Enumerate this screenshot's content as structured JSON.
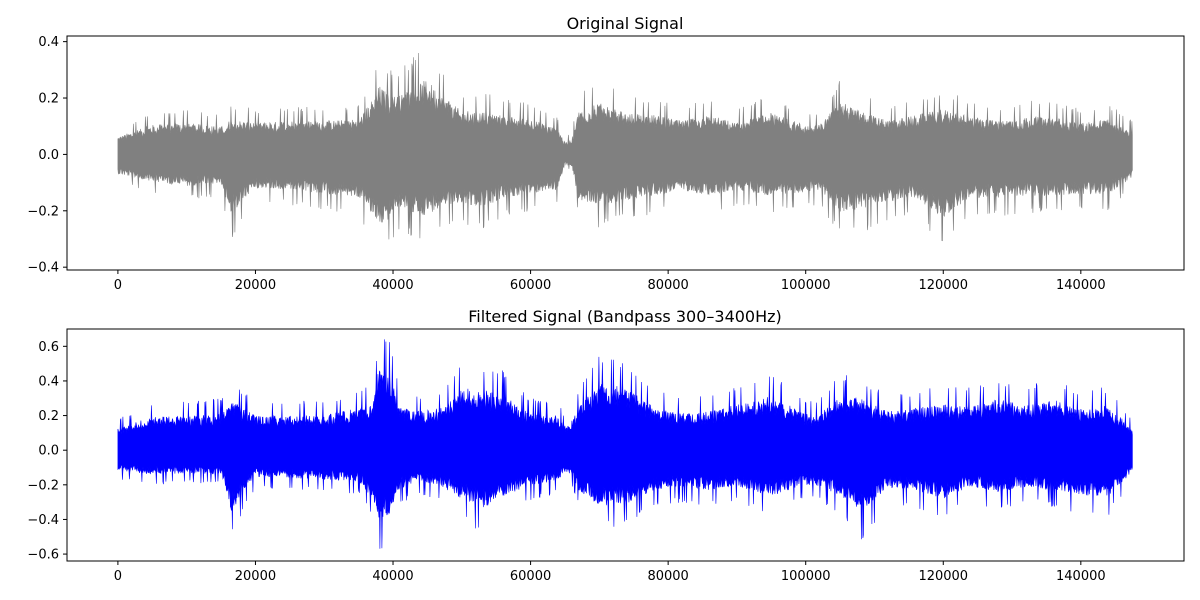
{
  "chart_data": [
    {
      "type": "line",
      "title": "Original Signal",
      "xlabel": "",
      "ylabel": "",
      "xlim": [
        -7400,
        155000
      ],
      "ylim": [
        -0.41,
        0.42
      ],
      "x_ticks": [
        0,
        20000,
        40000,
        60000,
        80000,
        100000,
        120000,
        140000
      ],
      "y_ticks": [
        -0.4,
        -0.2,
        0.0,
        0.2,
        0.4
      ],
      "x_tick_labels": [
        "0",
        "20000",
        "40000",
        "60000",
        "80000",
        "100000",
        "120000",
        "140000"
      ],
      "y_tick_labels": [
        "−0.4",
        "−0.2",
        "0.0",
        "0.2",
        "0.4"
      ],
      "grid": false,
      "legend": false,
      "color": "#808080",
      "n_samples": 147500,
      "envelope": {
        "x": [
          0,
          5000,
          10000,
          15000,
          16500,
          20000,
          25000,
          30000,
          35000,
          37000,
          38000,
          39500,
          41000,
          43000,
          45000,
          47000,
          50000,
          53000,
          56000,
          60000,
          64000,
          65000,
          66000,
          67000,
          70000,
          74000,
          78000,
          82000,
          86000,
          90000,
          95000,
          100000,
          102000,
          105000,
          108000,
          112000,
          116000,
          120000,
          124000,
          128000,
          132000,
          136000,
          140000,
          144000,
          147500
        ],
        "upper": [
          0.09,
          0.15,
          0.16,
          0.14,
          0.18,
          0.16,
          0.17,
          0.17,
          0.18,
          0.28,
          0.35,
          0.3,
          0.3,
          0.35,
          0.38,
          0.3,
          0.22,
          0.22,
          0.2,
          0.18,
          0.13,
          0.06,
          0.08,
          0.22,
          0.26,
          0.21,
          0.2,
          0.17,
          0.2,
          0.16,
          0.21,
          0.15,
          0.15,
          0.27,
          0.22,
          0.17,
          0.2,
          0.23,
          0.19,
          0.17,
          0.19,
          0.19,
          0.16,
          0.18,
          0.12
        ],
        "lower": [
          -0.1,
          -0.14,
          -0.16,
          -0.15,
          -0.3,
          -0.17,
          -0.18,
          -0.2,
          -0.22,
          -0.3,
          -0.37,
          -0.33,
          -0.27,
          -0.3,
          -0.31,
          -0.26,
          -0.25,
          -0.27,
          -0.22,
          -0.2,
          -0.18,
          -0.05,
          -0.06,
          -0.24,
          -0.26,
          -0.23,
          -0.21,
          -0.18,
          -0.21,
          -0.18,
          -0.21,
          -0.19,
          -0.18,
          -0.29,
          -0.28,
          -0.24,
          -0.22,
          -0.32,
          -0.22,
          -0.22,
          -0.21,
          -0.21,
          -0.2,
          -0.2,
          -0.12
        ]
      }
    },
    {
      "type": "line",
      "title": "Filtered Signal (Bandpass 300–3400Hz)",
      "xlabel": "",
      "ylabel": "",
      "xlim": [
        -7400,
        155000
      ],
      "ylim": [
        -0.64,
        0.7
      ],
      "x_ticks": [
        0,
        20000,
        40000,
        60000,
        80000,
        100000,
        120000,
        140000
      ],
      "y_ticks": [
        -0.6,
        -0.4,
        -0.2,
        0.0,
        0.2,
        0.4,
        0.6
      ],
      "x_tick_labels": [
        "0",
        "20000",
        "40000",
        "60000",
        "80000",
        "100000",
        "120000",
        "140000"
      ],
      "y_tick_labels": [
        "−0.6",
        "−0.4",
        "−0.2",
        "0.0",
        "0.2",
        "0.4",
        "0.6"
      ],
      "grid": false,
      "legend": false,
      "color": "#0000ff",
      "n_samples": 147500,
      "envelope": {
        "x": [
          0,
          5000,
          10000,
          15000,
          16500,
          20000,
          25000,
          30000,
          35000,
          37000,
          38000,
          39500,
          41000,
          43000,
          45000,
          47000,
          50000,
          53000,
          56000,
          60000,
          64000,
          65000,
          66000,
          67000,
          70000,
          74000,
          78000,
          82000,
          86000,
          90000,
          95000,
          100000,
          102000,
          105000,
          108000,
          112000,
          116000,
          120000,
          124000,
          128000,
          132000,
          136000,
          140000,
          144000,
          147500
        ],
        "upper": [
          0.18,
          0.28,
          0.28,
          0.3,
          0.42,
          0.28,
          0.29,
          0.29,
          0.35,
          0.38,
          0.69,
          0.64,
          0.36,
          0.33,
          0.33,
          0.35,
          0.52,
          0.5,
          0.46,
          0.3,
          0.29,
          0.2,
          0.25,
          0.36,
          0.55,
          0.52,
          0.35,
          0.3,
          0.32,
          0.38,
          0.45,
          0.3,
          0.3,
          0.44,
          0.43,
          0.32,
          0.35,
          0.38,
          0.36,
          0.42,
          0.37,
          0.42,
          0.34,
          0.37,
          0.18
        ],
        "lower": [
          -0.17,
          -0.2,
          -0.19,
          -0.2,
          -0.5,
          -0.22,
          -0.23,
          -0.24,
          -0.26,
          -0.4,
          -0.58,
          -0.57,
          -0.32,
          -0.27,
          -0.28,
          -0.3,
          -0.4,
          -0.48,
          -0.38,
          -0.29,
          -0.25,
          -0.18,
          -0.2,
          -0.33,
          -0.46,
          -0.44,
          -0.33,
          -0.3,
          -0.33,
          -0.3,
          -0.38,
          -0.28,
          -0.3,
          -0.37,
          -0.53,
          -0.31,
          -0.33,
          -0.4,
          -0.3,
          -0.35,
          -0.3,
          -0.33,
          -0.37,
          -0.38,
          -0.18
        ]
      }
    }
  ]
}
